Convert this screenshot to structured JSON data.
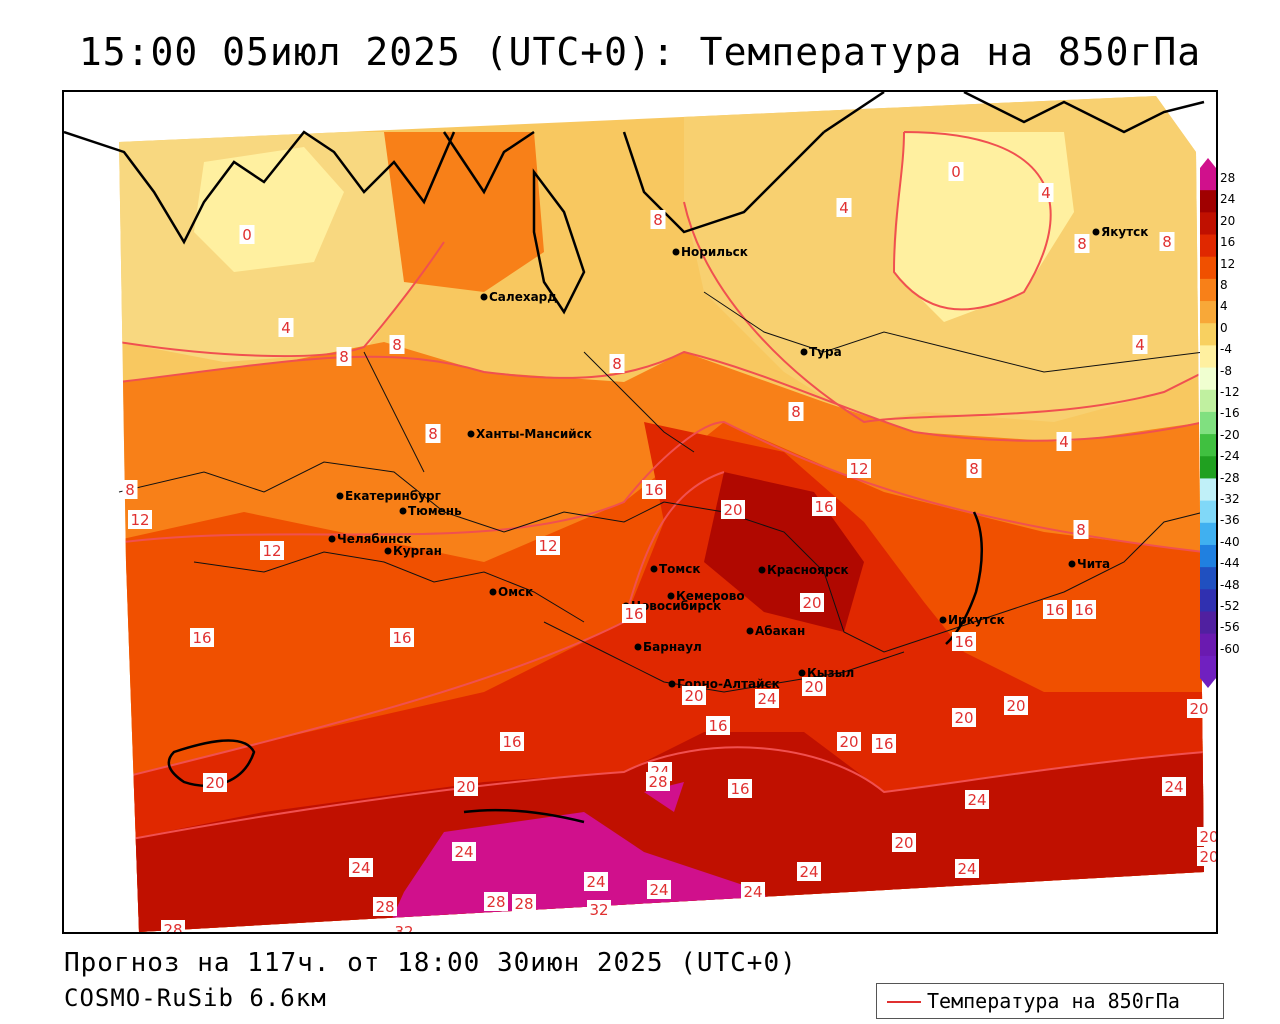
{
  "title": "15:00 05июл 2025 (UTC+0): Температура на 850гПа",
  "footer": {
    "forecast": "Прогноз на 117ч. от 18:00 30июн 2025 (UTC+0)",
    "model": "COSMO-RuSib 6.6км"
  },
  "legend": {
    "label": "Температура на 850гПа",
    "line_color": "#e03030"
  },
  "colorbar": {
    "ticks": [
      "28",
      "24",
      "20",
      "16",
      "12",
      "8",
      "4",
      "0",
      "-4",
      "-8",
      "-12",
      "-16",
      "-20",
      "-24",
      "-28",
      "-32",
      "-36",
      "-40",
      "-44",
      "-48",
      "-52",
      "-56",
      "-60"
    ],
    "colors": [
      "#d0108c",
      "#a00000",
      "#c01000",
      "#e02800",
      "#f05000",
      "#f88018",
      "#f8a838",
      "#f8d060",
      "#fff0a0",
      "#f0ffd0",
      "#c0f0a0",
      "#80e080",
      "#40c040",
      "#20a020",
      "#c0f0f8",
      "#80d8f8",
      "#40b0f0",
      "#2080e0",
      "#2050c0",
      "#3030b0",
      "#5020a0",
      "#6a1ab0",
      "#7020c0"
    ]
  },
  "cities": [
    {
      "name": "Салехард"
    },
    {
      "name": "Норильск"
    },
    {
      "name": "Якутск"
    },
    {
      "name": "Тура"
    },
    {
      "name": "Ханты-Мансийск"
    },
    {
      "name": "Екатеринбург"
    },
    {
      "name": "Тюмень"
    },
    {
      "name": "Челябинск"
    },
    {
      "name": "Курган"
    },
    {
      "name": "Омск"
    },
    {
      "name": "Новосибирск"
    },
    {
      "name": "Томск"
    },
    {
      "name": "Кемерово"
    },
    {
      "name": "Красноярск"
    },
    {
      "name": "Абакан"
    },
    {
      "name": "Барнаул"
    },
    {
      "name": "Горно-Алтайск"
    },
    {
      "name": "Кызыл"
    },
    {
      "name": "Иркутск"
    },
    {
      "name": "Чита"
    }
  ],
  "isotherm_labels": [
    "0",
    "0",
    "4",
    "4",
    "4",
    "4",
    "4",
    "8",
    "8",
    "8",
    "8",
    "8",
    "8",
    "8",
    "8",
    "8",
    "8",
    "8",
    "12",
    "12",
    "12",
    "12",
    "16",
    "16",
    "16",
    "16",
    "16",
    "16",
    "16",
    "16",
    "16",
    "16",
    "16",
    "16",
    "20",
    "20",
    "20",
    "20",
    "20",
    "20",
    "20",
    "20",
    "20",
    "20",
    "20",
    "20",
    "20",
    "24",
    "24",
    "24",
    "24",
    "24",
    "24",
    "24",
    "24",
    "24",
    "24",
    "24",
    "28",
    "28",
    "28",
    "28",
    "28",
    "32",
    "32"
  ]
}
